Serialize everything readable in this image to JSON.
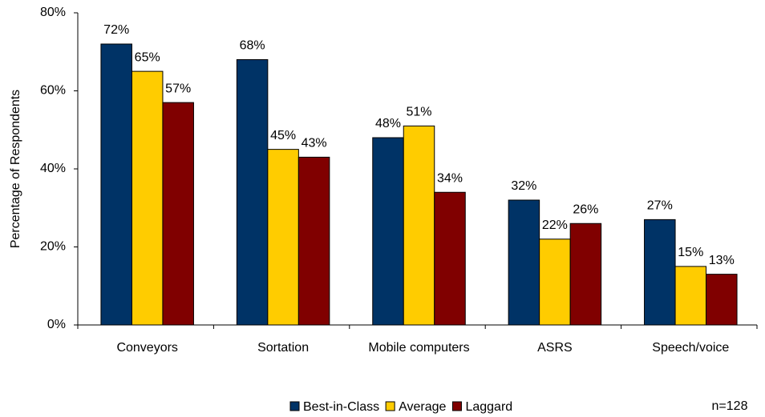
{
  "chart_data": {
    "type": "bar",
    "y_label": "Percentage of Respondents",
    "categories": [
      "Conveyors",
      "Sortation",
      "Mobile computers",
      "ASRS",
      "Speech/voice"
    ],
    "series": [
      {
        "name": "Best-in-Class",
        "color": "#003366",
        "values": [
          72,
          68,
          48,
          32,
          27
        ],
        "value_labels": [
          "72%",
          "68%",
          "48%",
          "32%",
          "27%"
        ]
      },
      {
        "name": "Average",
        "color": "#ffcc00",
        "values": [
          65,
          45,
          51,
          22,
          15
        ],
        "value_labels": [
          "65%",
          "45%",
          "51%",
          "22%",
          "15%"
        ]
      },
      {
        "name": "Laggard",
        "color": "#800000",
        "values": [
          57,
          43,
          34,
          26,
          13
        ],
        "value_labels": [
          "57%",
          "43%",
          "34%",
          "26%",
          "13%"
        ]
      }
    ],
    "ylim": [
      0,
      80
    ],
    "yticks": [
      {
        "value": 0,
        "label": "0%"
      },
      {
        "value": 20,
        "label": "20%"
      },
      {
        "value": 40,
        "label": "40%"
      },
      {
        "value": 60,
        "label": "60%"
      },
      {
        "value": 80,
        "label": "80%"
      }
    ],
    "legend": "bottom",
    "annotation": "n=128"
  }
}
